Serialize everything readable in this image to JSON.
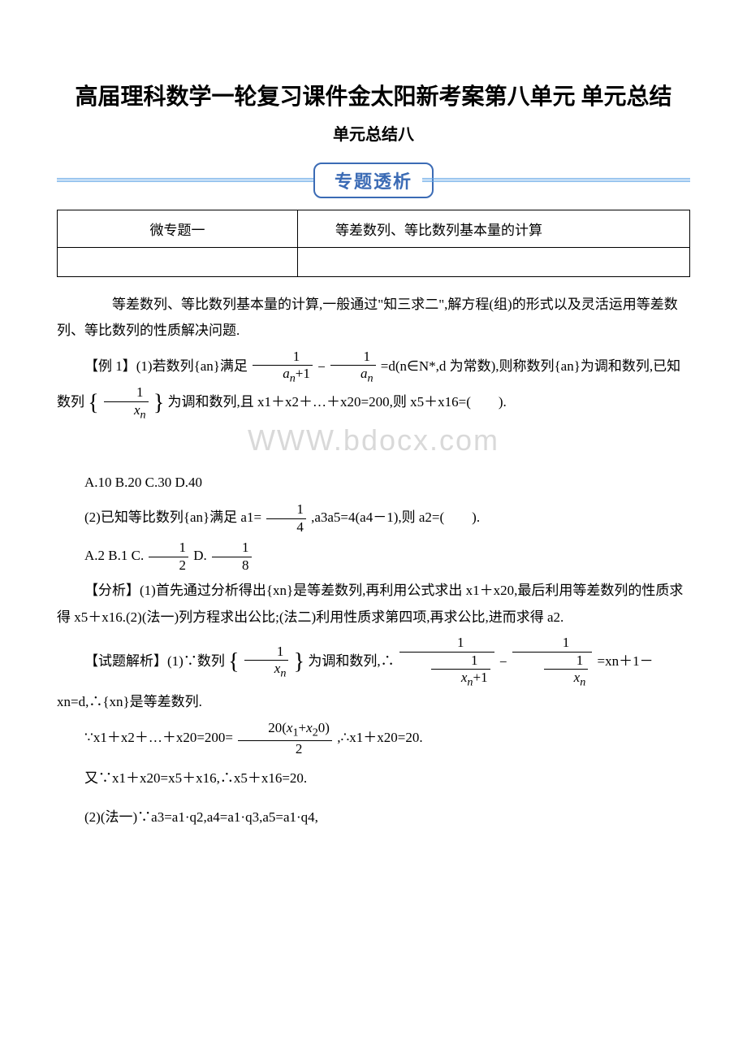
{
  "title": "高届理科数学一轮复习课件金太阳新考案第八单元 单元总结",
  "subtitle": "单元总结八",
  "banner_label": "专题透析",
  "topic_table": {
    "left": "微专题一",
    "right": "　　等差数列、等比数列基本量的计算"
  },
  "intro": "　　等差数列、等比数列基本量的计算,一般通过\"知三求二\",解方程(组)的形式以及灵活运用等差数列、等比数列的性质解决问题.",
  "ex1": {
    "lead": "【例 1】(1)若数列{an}满足",
    "mid": "=d(n∈N*,d 为常数),则称数列{an}为调和数列,已知数列",
    "tail": "为调和数列,且 x1＋x2＋…＋x20=200,则 x5＋x16=(　　).",
    "options": "A.10 B.20 C.30 D.40",
    "p2_lead": "(2)已知等比数列{an}满足 a1=",
    "p2_tail": ",a3a5=4(a4－1),则 a2=(　　).",
    "p2_options_lead": "A.2 B.1 C.",
    "p2_options_mid": " D."
  },
  "analysis": "【分析】(1)首先通过分析得出{xn}是等差数列,再利用公式求出 x1＋x20,最后利用等差数列的性质求得 x5＋x16.(2)(法一)列方程求出公比;(法二)利用性质求第四项,再求公比,进而求得 a2.",
  "solution": {
    "lead": "【试题解析】(1)∵数列",
    "mid": "为调和数列,∴",
    "tail": "=xn＋1－xn=d,∴{xn}是等差数列.",
    "line2_a": "∵x1＋x2＋…＋x20=200=",
    "line2_b": ",∴x1＋x20=20.",
    "line3": "又∵x1＋x20=x5＋x16,∴x5＋x16=20.",
    "line4": "(2)(法一)∵a3=a1·q2,a4=a1·q3,a5=a1·q4,"
  },
  "watermark": "WWW.bdocx.com",
  "colors": {
    "banner_blue": "#3b6bb5",
    "line_blue": "#5fa4e6",
    "text": "#000000",
    "watermark": "#d9d9d9",
    "background": "#ffffff"
  }
}
